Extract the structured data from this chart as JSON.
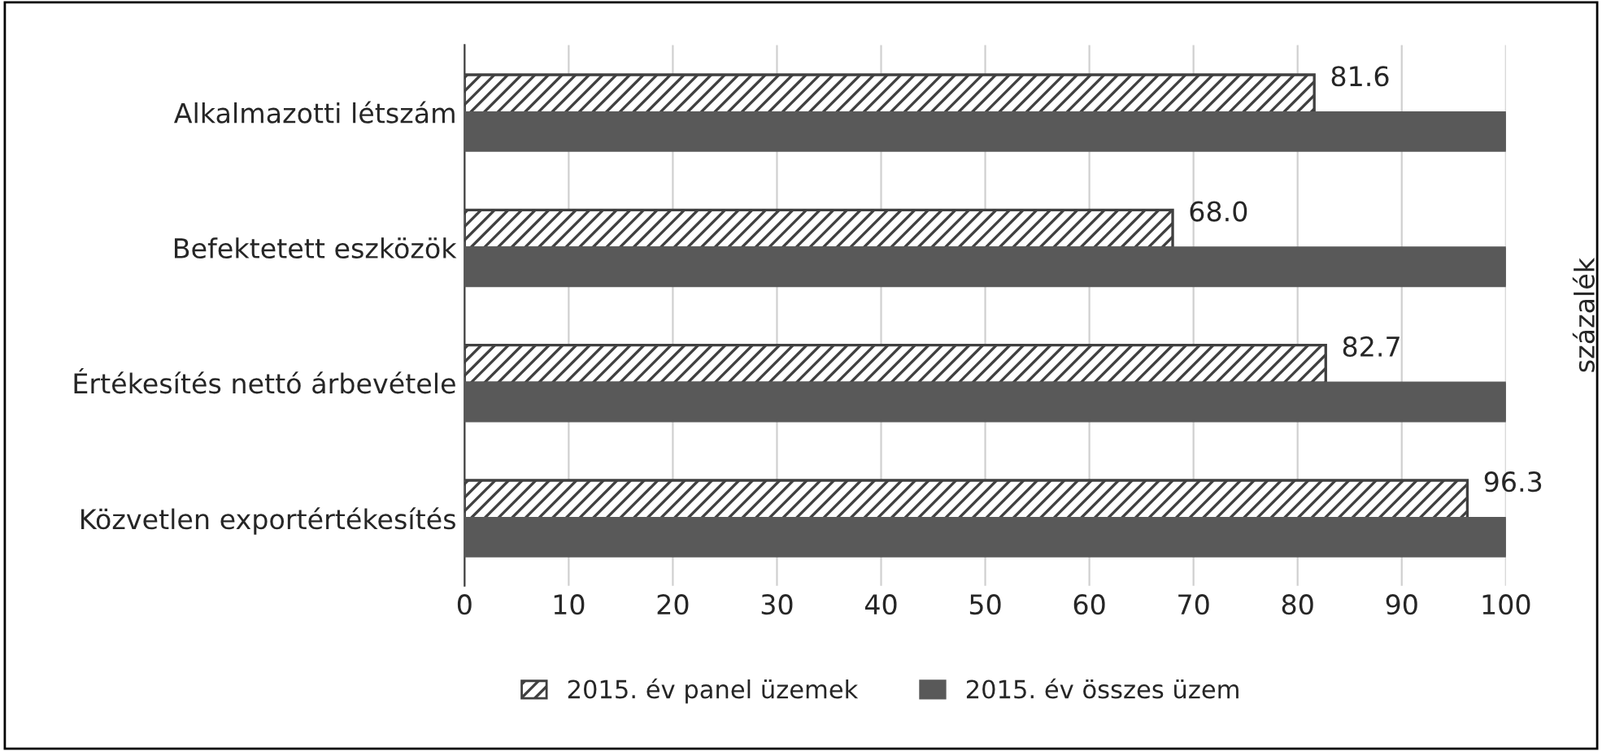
{
  "chart_data": {
    "type": "bar",
    "orientation": "horizontal",
    "categories": [
      "Alkalmazotti létszám",
      "Befektetett eszközök",
      "Értékesítés nettó árbevétele",
      "Közvetlen exportértékesítés"
    ],
    "series": [
      {
        "name": "2015. év panel üzemek",
        "color": "#404040",
        "values": [
          81.6,
          68.0,
          82.7,
          96.3
        ],
        "value_labels": [
          "81.6",
          "68.0",
          "82.7",
          "96.3"
        ]
      },
      {
        "name": "2015. év összes üzem",
        "color": "#595959",
        "values": [
          100,
          100,
          100,
          100
        ]
      }
    ],
    "ylabel": "százalék",
    "xlim": [
      0,
      100
    ],
    "xticks": [
      0,
      10,
      20,
      30,
      40,
      50,
      60,
      70,
      80,
      90,
      100
    ],
    "grid": "x",
    "legend": "bottom"
  }
}
